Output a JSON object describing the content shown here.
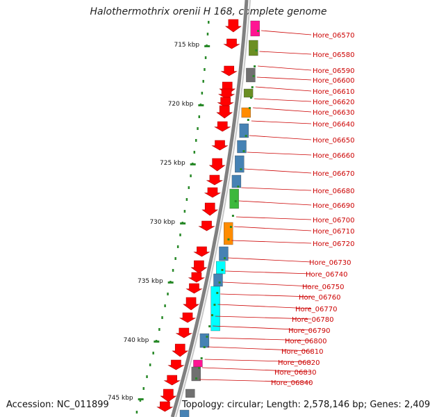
{
  "title": "Halothermothrix orenii H 168, complete genome",
  "accession_label": "Accession:",
  "accession": "NC_011899",
  "topology_label": "Topology:",
  "topology": "circular",
  "length_label": "Length:",
  "length": "2,578,146 bp",
  "genes_label": "Genes:",
  "genes": "2,409",
  "scale_ticks": [
    "715 kbp",
    "720 kbp",
    "725 kbp",
    "730 kbp",
    "735 kbp",
    "740 kbp",
    "745 kbp"
  ],
  "gene_labels": [
    "Hore_06570",
    "Hore_06580",
    "Hore_06590",
    "Hore_06600",
    "Hore_06610",
    "Hore_06620",
    "Hore_06630",
    "Hore_06640",
    "Hore_06650",
    "Hore_06660",
    "Hore_06670",
    "Hore_06680",
    "Hore_06690",
    "Hore_06700",
    "Hore_06710",
    "Hore_06720",
    "Hore_06730",
    "Hore_06740",
    "Hore_06750",
    "Hore_06760",
    "Hore_06770",
    "Hore_06780",
    "Hore_06790",
    "Hore_06800",
    "Hore_06810",
    "Hore_06820",
    "Hore_06830",
    "Hore_06840"
  ],
  "colors": {
    "cds": "#ff0000",
    "backbone": "#808080",
    "label": "#cc0000",
    "tick": "#2a8a2a",
    "blue": "#4682b4",
    "cyan": "#00ffff",
    "green": "#3cb83c",
    "olive": "#6b8e23",
    "gray": "#707070",
    "magenta": "#ff1493",
    "orange": "#ff8c00"
  }
}
